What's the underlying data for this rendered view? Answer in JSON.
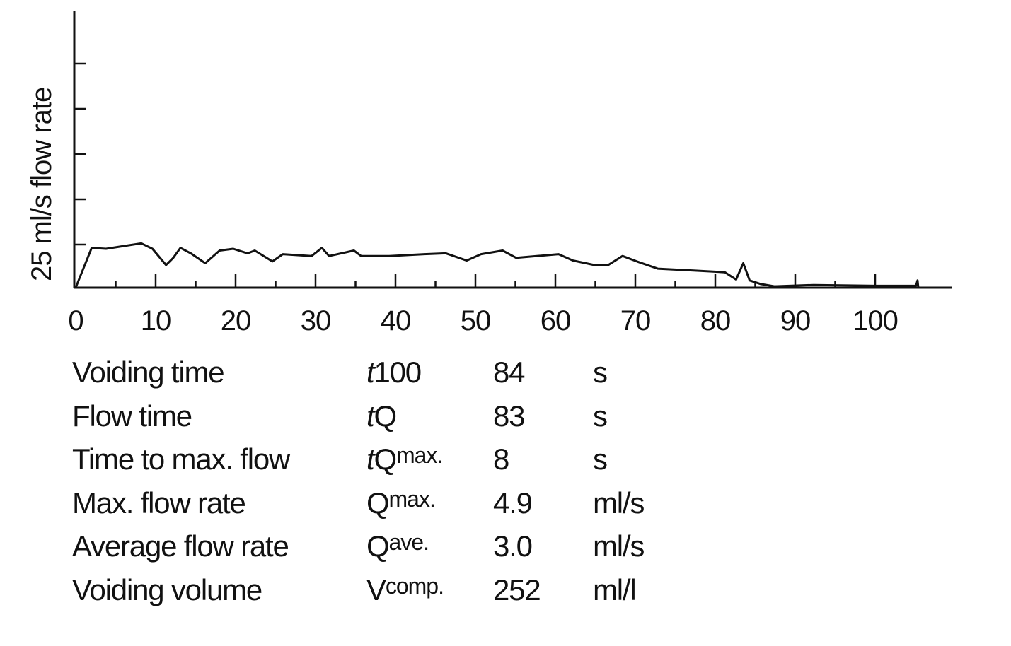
{
  "chart_data": {
    "type": "line",
    "title": "",
    "xlabel": "",
    "ylabel": "25 ml/s flow rate",
    "xlim": [
      0,
      110
    ],
    "ylim": [
      0,
      30
    ],
    "x_ticks": [
      0,
      10,
      20,
      30,
      40,
      50,
      60,
      70,
      80,
      90,
      100
    ],
    "x_tick_labels": [
      "0",
      "10",
      "20",
      "30",
      "40",
      "50",
      "60",
      "70",
      "80",
      "90",
      "100"
    ],
    "x_minor_ticks": [
      5,
      15,
      25,
      35,
      45,
      55,
      65,
      75,
      85,
      95
    ],
    "y_ticks": [
      5,
      10,
      15,
      20,
      25
    ],
    "grid": false,
    "series": [
      {
        "name": "flow rate",
        "color": "#111111",
        "x": [
          0,
          2.0,
          3.8,
          6.0,
          8.2,
          9.6,
          11.3,
          12.2,
          13.1,
          14.4,
          16.2,
          18.0,
          19.7,
          21.5,
          22.4,
          24.6,
          25.9,
          29.5,
          30.8,
          31.7,
          34.8,
          35.7,
          39.2,
          43.6,
          46.3,
          48.9,
          50.7,
          53.4,
          55.1,
          60.4,
          62.2,
          64.9,
          66.6,
          68.4,
          70.2,
          72.8,
          77.3,
          81.2,
          82.6,
          83.5,
          84.3,
          85.7,
          87.4,
          92.3,
          100,
          105.1,
          105.3,
          105.4
        ],
        "y": [
          0,
          4.4,
          4.3,
          4.6,
          4.9,
          4.3,
          2.5,
          3.3,
          4.4,
          3.8,
          2.7,
          4.1,
          4.3,
          3.8,
          4.1,
          2.9,
          3.7,
          3.5,
          4.4,
          3.5,
          4.1,
          3.5,
          3.5,
          3.7,
          3.8,
          3.0,
          3.7,
          4.1,
          3.3,
          3.7,
          3.0,
          2.5,
          2.5,
          3.5,
          2.9,
          2.1,
          1.9,
          1.7,
          0.9,
          2.7,
          0.8,
          0.4,
          0.15,
          0.3,
          0.2,
          0.2,
          0.8,
          0
        ]
      }
    ]
  },
  "parameters": [
    {
      "label": "Voiding time",
      "sym_italic": "t",
      "sym_text": "100",
      "sym_sub": "",
      "value": "84",
      "unit": "s"
    },
    {
      "label": "Flow time",
      "sym_italic": "t",
      "sym_text": "Q",
      "sym_sub": "",
      "value": "83",
      "unit": "s"
    },
    {
      "label": "Time to max. flow",
      "sym_italic": "t",
      "sym_text": "Q",
      "sym_sub": "max.",
      "value": "8",
      "unit": "s"
    },
    {
      "label": "Max. flow rate",
      "sym_italic": "",
      "sym_text": "Q",
      "sym_sub": "max.",
      "value": "4.9",
      "unit": "ml/s"
    },
    {
      "label": "Average flow rate",
      "sym_italic": "",
      "sym_text": "Q",
      "sym_sub": "ave.",
      "value": "3.0",
      "unit": "ml/s"
    },
    {
      "label": "Voiding volume",
      "sym_italic": "",
      "sym_text": "V",
      "sym_sub": "comp.",
      "value": "252",
      "unit": "ml/l"
    }
  ]
}
